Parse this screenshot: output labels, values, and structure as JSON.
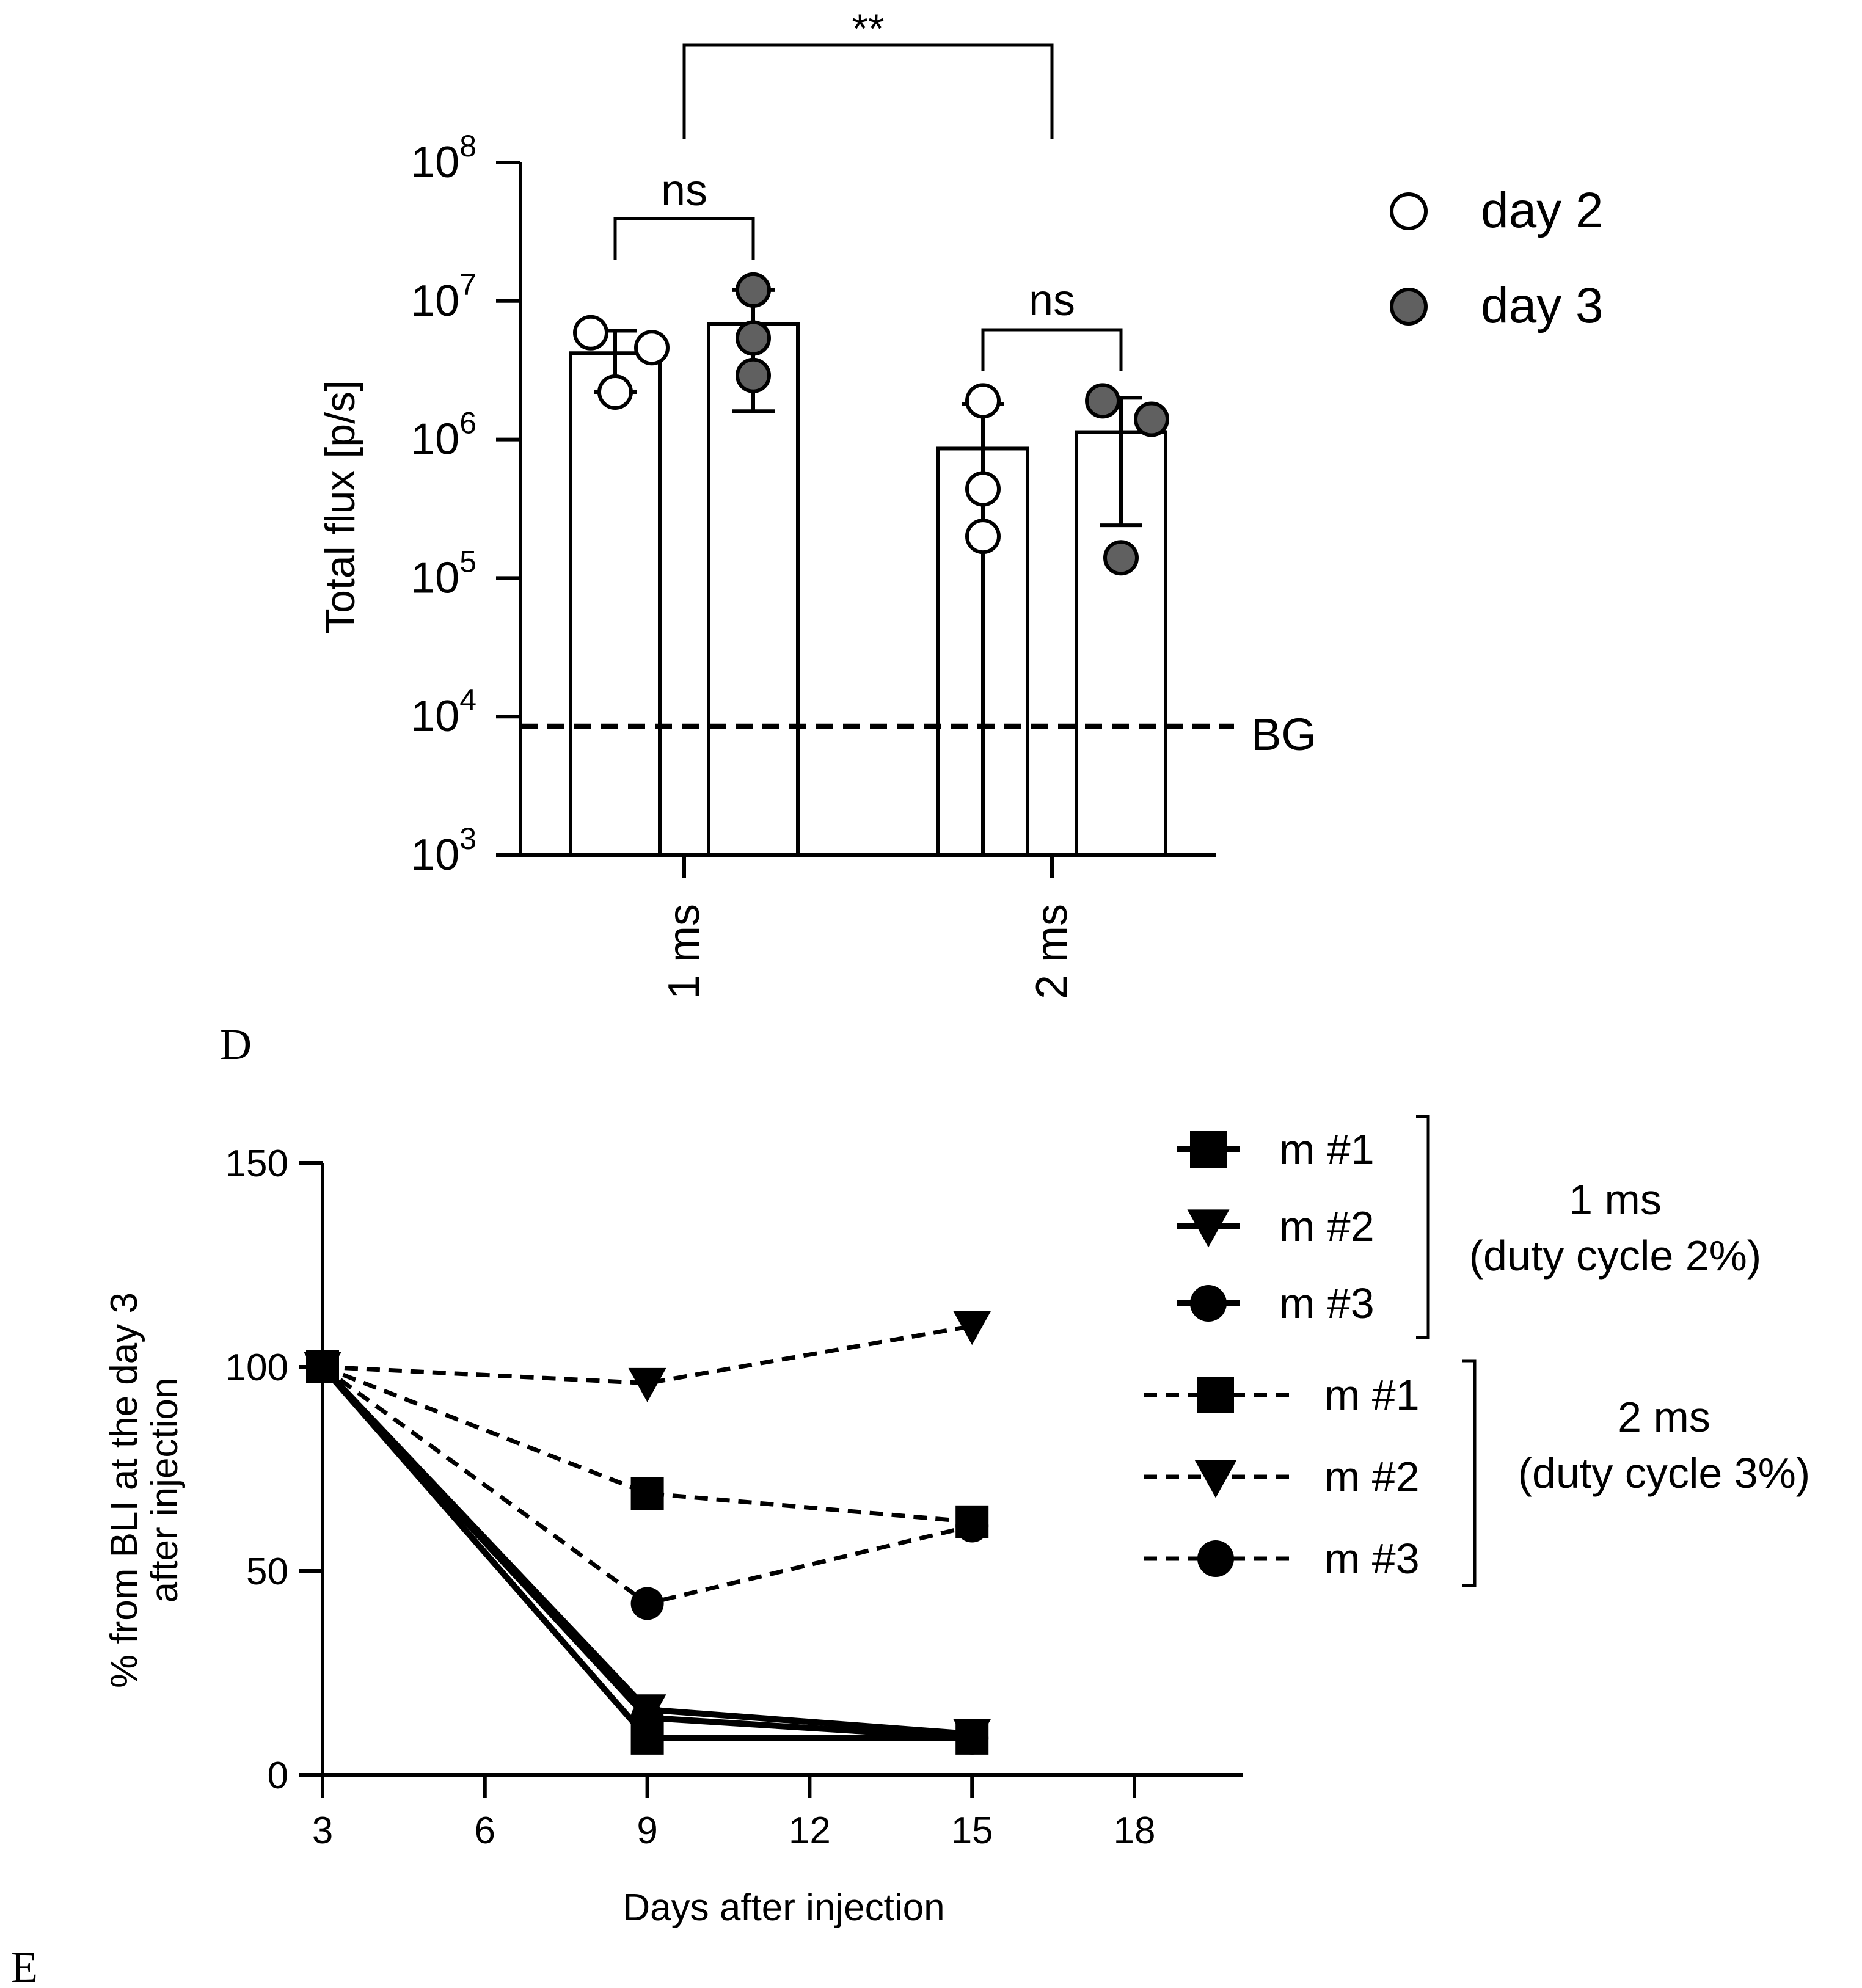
{
  "panel_labels": {
    "D": "D",
    "E": "E"
  },
  "chart_data": [
    {
      "panel": "D",
      "type": "bar",
      "title": "",
      "ylabel": "Total flux [p/s]",
      "y_scale": "log",
      "ylim": [
        1000,
        100000000
      ],
      "y_ticks": [
        {
          "value": 1000,
          "base": "10",
          "exp": "3"
        },
        {
          "value": 10000,
          "base": "10",
          "exp": "4"
        },
        {
          "value": 100000,
          "base": "10",
          "exp": "5"
        },
        {
          "value": 1000000,
          "base": "10",
          "exp": "6"
        },
        {
          "value": 10000000,
          "base": "10",
          "exp": "7"
        },
        {
          "value": 100000000,
          "base": "10",
          "exp": "8"
        }
      ],
      "categories": [
        "1 ms",
        "2 ms"
      ],
      "series": [
        {
          "name": "day 2",
          "color": "#ffffff",
          "values": [
            4200000,
            860000
          ],
          "error_low": [
            2200000,
            null
          ],
          "error_high": [
            6100000,
            1800000
          ],
          "points": [
            [
              5900000,
              2200000,
              4600000
            ],
            [
              1900000,
              440000,
              200000
            ]
          ]
        },
        {
          "name": "day 3",
          "color": "#606060",
          "values": [
            6800000,
            1130000
          ],
          "error_low": [
            1600000,
            240000
          ],
          "error_high": [
            12000000,
            2000000
          ],
          "points": [
            [
              12000000,
              5400000,
              2900000
            ],
            [
              1900000,
              1400000,
              140000
            ]
          ]
        }
      ],
      "background_line": {
        "value": 8500,
        "label": "BG"
      },
      "annotations": {
        "ns_1ms": "ns",
        "ns_2ms": "ns",
        "between_groups": "**"
      },
      "legend_position": "top-right"
    },
    {
      "panel": "E",
      "type": "line",
      "title": "",
      "xlabel": "Days after injection",
      "ylabel_lines": [
        "% from BLI at the day 3",
        "after injection"
      ],
      "xlim": [
        3,
        20
      ],
      "ylim": [
        0,
        150
      ],
      "x_ticks": [
        3,
        6,
        9,
        12,
        15,
        18
      ],
      "y_ticks": [
        0,
        50,
        100,
        150
      ],
      "x": [
        3,
        9,
        15
      ],
      "series": [
        {
          "name": "m #1",
          "group": "1 ms (duty cycle 2%)",
          "marker": "square",
          "style": "solid",
          "values": [
            100,
            9,
            9
          ]
        },
        {
          "name": "m #2",
          "group": "1 ms (duty cycle 2%)",
          "marker": "triangle-down",
          "style": "solid",
          "values": [
            100,
            16,
            10
          ]
        },
        {
          "name": "m #3",
          "group": "1 ms (duty cycle 2%)",
          "marker": "circle",
          "style": "solid",
          "values": [
            100,
            14,
            9
          ]
        },
        {
          "name": "m #1",
          "group": "2 ms (duty cycle 3%)",
          "marker": "square",
          "style": "dashed",
          "values": [
            100,
            69,
            62
          ]
        },
        {
          "name": "m #2",
          "group": "2 ms (duty cycle 3%)",
          "marker": "triangle-down",
          "style": "dashed",
          "values": [
            100,
            96,
            110
          ]
        },
        {
          "name": "m #3",
          "group": "2 ms (duty cycle 3%)",
          "marker": "circle",
          "style": "dashed",
          "values": [
            100,
            42,
            61
          ]
        }
      ],
      "legend_groups": [
        {
          "line1": "1 ms",
          "line2": "(duty cycle 2%)"
        },
        {
          "line1": "2 ms",
          "line2": "(duty cycle 3%)"
        }
      ],
      "legend_position": "right"
    }
  ]
}
